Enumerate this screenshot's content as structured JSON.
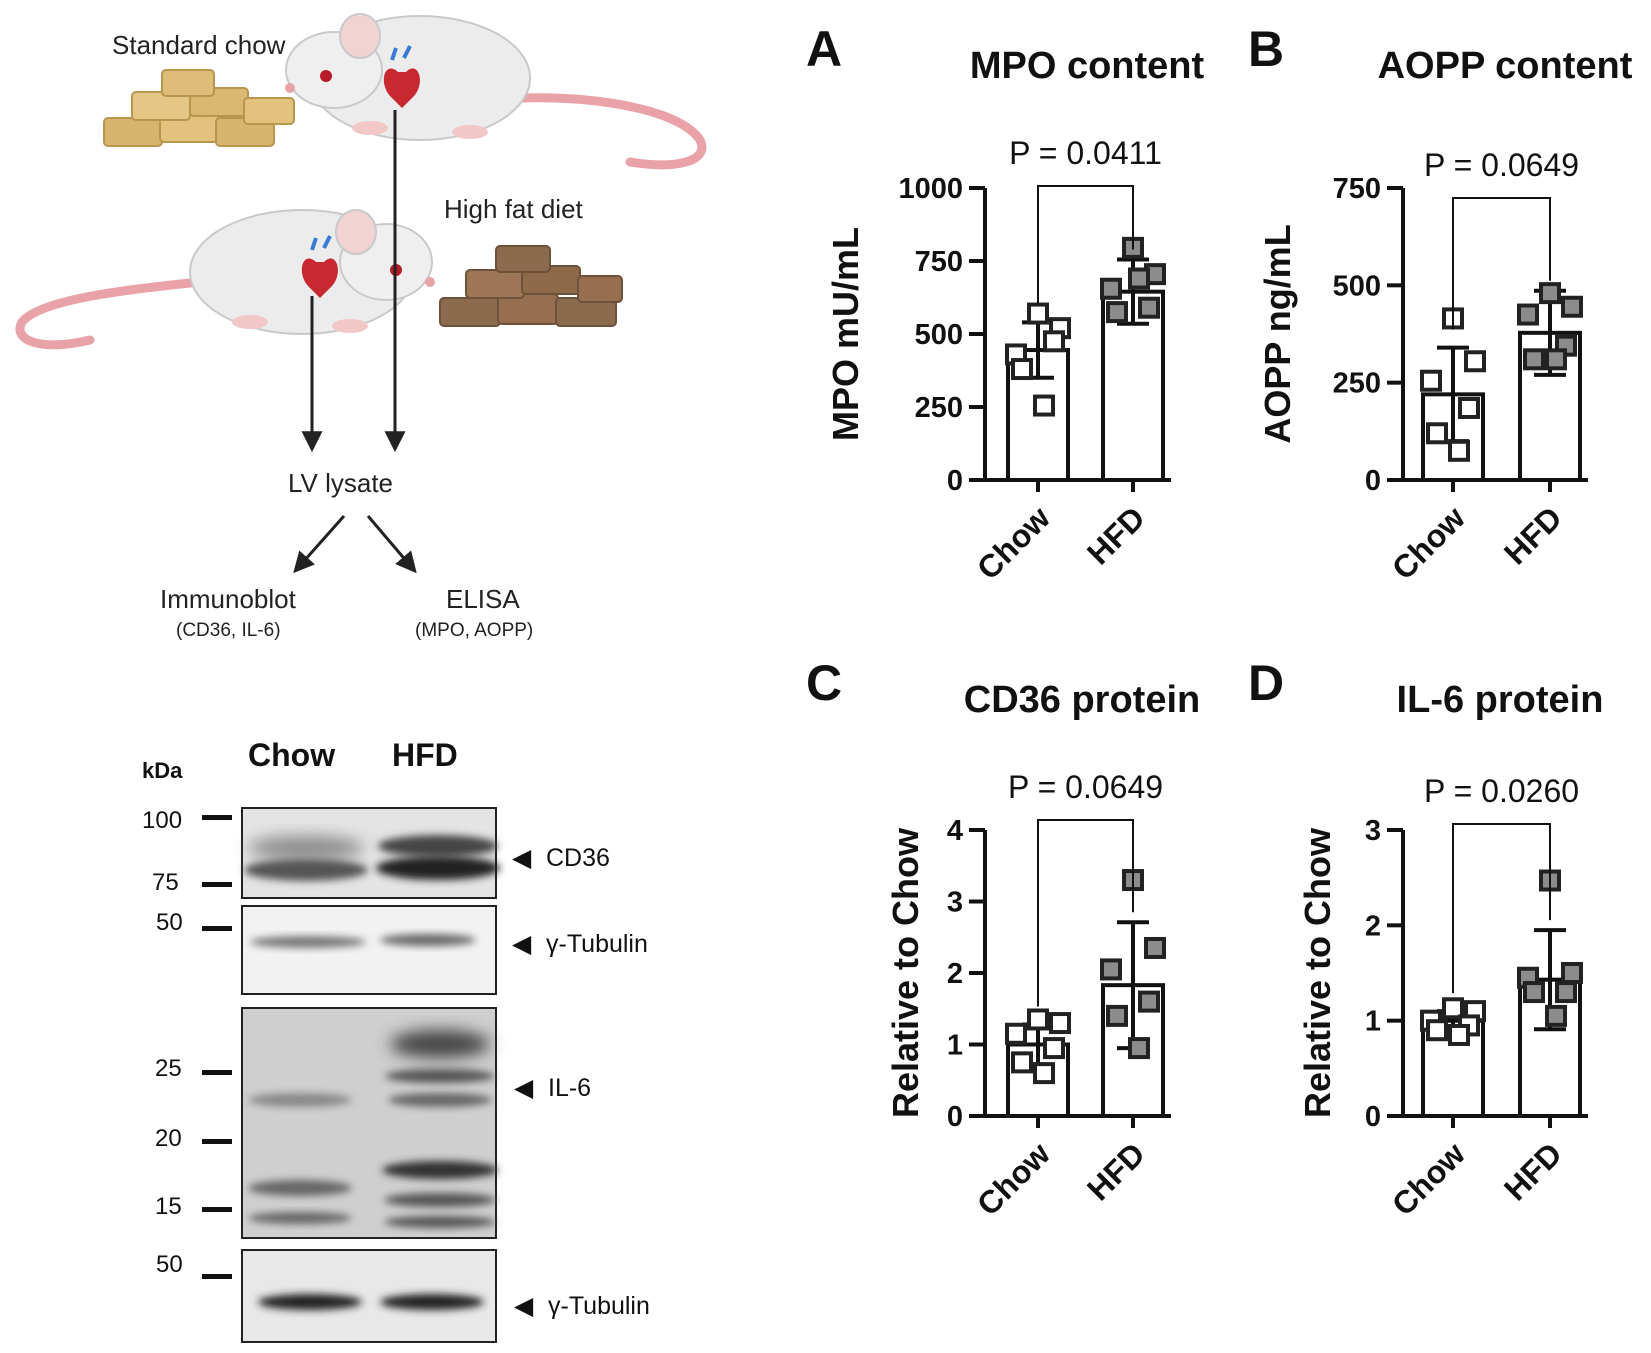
{
  "diagram": {
    "standard_chow": "Standard chow",
    "high_fat_diet": "High fat diet",
    "lv_lysate": "LV lysate",
    "immunoblot": "Immunoblot",
    "immunoblot_targets": "(CD36, IL-6)",
    "elisa": "ELISA",
    "elisa_targets": "(MPO, AOPP)",
    "colors": {
      "chow_pellet": "#D7B56E",
      "hfd_pellet": "#8B6A4D",
      "mouse_body": "#ECECEC",
      "tail": "#E9A3A8"
    },
    "icons": [
      "mouse-icon",
      "chow-pellets-icon",
      "hfd-pellets-icon",
      "heart-icon"
    ]
  },
  "blot": {
    "kda_label": "kDa",
    "lane_labels": [
      "Chow",
      "HFD"
    ],
    "membranes": [
      {
        "markers": [
          "100",
          "75"
        ],
        "band_label": "CD36",
        "arrow": "◀"
      },
      {
        "markers": [
          "50"
        ],
        "band_label": "γ-Tubulin",
        "arrow": "◀"
      },
      {
        "markers": [
          "25",
          "20",
          "15"
        ],
        "band_label": "IL-6",
        "arrow": "◀"
      },
      {
        "markers": [
          "50"
        ],
        "band_label": "γ-Tubulin",
        "arrow": "◀"
      }
    ]
  },
  "chart_data": [
    {
      "panel": "A",
      "type": "bar",
      "title": "MPO content",
      "ylabel": "MPO mU/mL",
      "categories": [
        "Chow",
        "HFD"
      ],
      "ylim": [
        0,
        1000
      ],
      "yticks": [
        "0",
        "250",
        "500",
        "750",
        "1000"
      ],
      "bar_means": [
        445,
        645
      ],
      "error_sd": [
        95,
        110
      ],
      "points": [
        [
          570,
          520,
          430,
          475,
          380,
          255
        ],
        [
          795,
          705,
          655,
          590,
          575,
          690
        ]
      ],
      "p_value": "P = 0.0411",
      "grid": false
    },
    {
      "panel": "B",
      "type": "bar",
      "title": "AOPP content",
      "ylabel": "AOPP ng/mL",
      "categories": [
        "Chow",
        "HFD"
      ],
      "ylim": [
        0,
        750
      ],
      "yticks": [
        "0",
        "250",
        "500",
        "750"
      ],
      "bar_means": [
        220,
        378
      ],
      "error_sd": [
        120,
        108
      ],
      "points": [
        [
          415,
          305,
          255,
          185,
          120,
          75
        ],
        [
          480,
          445,
          425,
          345,
          310,
          310
        ]
      ],
      "p_value": "P = 0.0649",
      "grid": false
    },
    {
      "panel": "C",
      "type": "bar",
      "title": "CD36 protein",
      "ylabel": "Relative to Chow",
      "categories": [
        "Chow",
        "HFD"
      ],
      "ylim": [
        0,
        4
      ],
      "yticks": [
        "0",
        "1",
        "2",
        "3",
        "4"
      ],
      "bar_means": [
        1.0,
        1.83
      ],
      "error_sd": [
        0.28,
        0.88
      ],
      "points": [
        [
          1.35,
          1.3,
          1.15,
          0.95,
          0.75,
          0.6
        ],
        [
          3.3,
          2.35,
          2.05,
          1.6,
          1.4,
          0.95
        ]
      ],
      "p_value": "P = 0.0649",
      "grid": false
    },
    {
      "panel": "D",
      "type": "bar",
      "title": "IL-6 protein",
      "ylabel": "Relative to Chow",
      "categories": [
        "Chow",
        "HFD"
      ],
      "ylim": [
        0,
        3
      ],
      "yticks": [
        "0",
        "1",
        "2",
        "3"
      ],
      "bar_means": [
        1.0,
        1.43
      ],
      "error_sd": [
        0.1,
        0.52
      ],
      "points": [
        [
          1.13,
          1.1,
          1.0,
          0.95,
          0.9,
          0.85
        ],
        [
          2.47,
          1.5,
          1.45,
          1.3,
          1.3,
          1.05
        ]
      ],
      "p_value": "P = 0.0260",
      "grid": false
    }
  ]
}
